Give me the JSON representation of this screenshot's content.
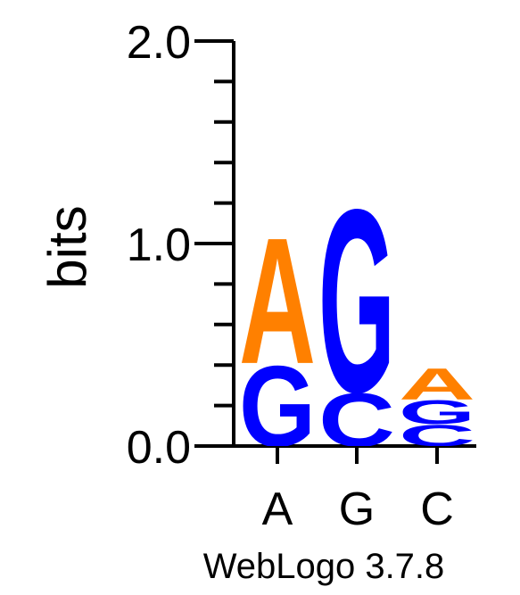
{
  "chart_data": {
    "type": "sequence-logo",
    "ylabel": "bits",
    "ylim": [
      0,
      2.0
    ],
    "yticks": [
      {
        "value": 0.0,
        "label": "0.0"
      },
      {
        "value": 1.0,
        "label": "1.0"
      },
      {
        "value": 2.0,
        "label": "2.0"
      }
    ],
    "minor_tick_step": 0.2,
    "positions": [
      {
        "label": "A",
        "stack": [
          {
            "letter": "G",
            "height": 0.41
          },
          {
            "letter": "A",
            "height": 0.64
          }
        ]
      },
      {
        "label": "G",
        "stack": [
          {
            "letter": "C",
            "height": 0.27
          },
          {
            "letter": "G",
            "height": 0.93
          }
        ]
      },
      {
        "label": "C",
        "stack": [
          {
            "letter": "C",
            "height": 0.11
          },
          {
            "letter": "G",
            "height": 0.12
          },
          {
            "letter": "A",
            "height": 0.16
          }
        ]
      }
    ],
    "colors": {
      "A": "#ff8000",
      "G": "#0000ff",
      "C": "#0000ff"
    }
  },
  "footer": "WebLogo 3.7.8"
}
